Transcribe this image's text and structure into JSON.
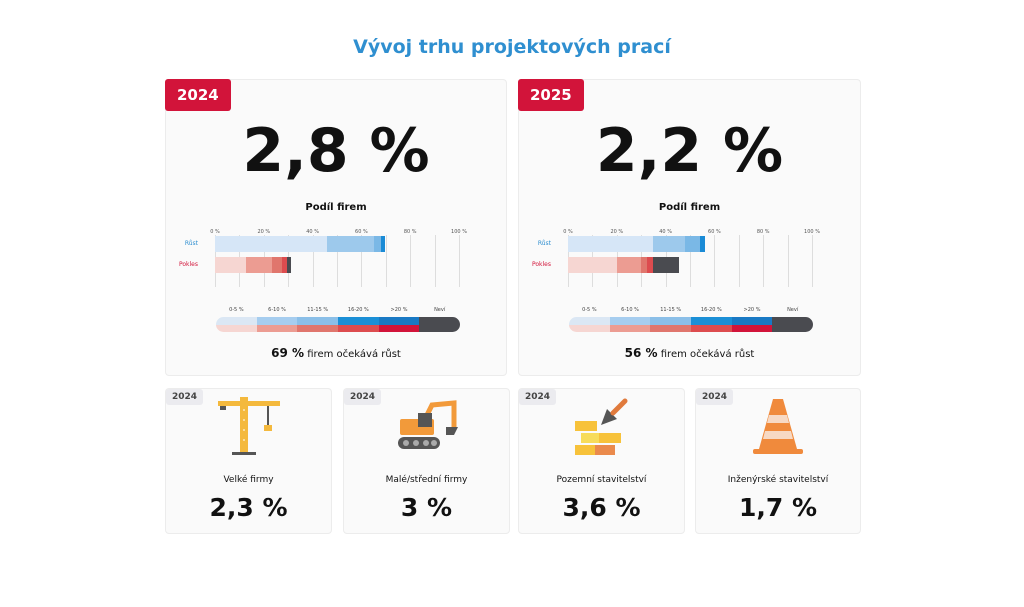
{
  "title": "Vývoj trhu projektových prací",
  "colors": {
    "title": "#2f8fd0",
    "badge": "#d2143a",
    "rust": [
      "#d6e6f7",
      "#9dc9ec",
      "#7ab8e6",
      "#1a8bd6"
    ],
    "pokles": [
      "#f6d6d2",
      "#ec9c92",
      "#e0766d",
      "#dd4c4f",
      "#4a4b50"
    ],
    "legend_top": [
      "#dbe7f4",
      "#a6cdef",
      "#8bbfe8",
      "#1b8fd6",
      "#1979c4",
      "#4a4b50"
    ],
    "legend_bottom": [
      "#f6d6d2",
      "#ec9c92",
      "#e0766d",
      "#dd4c4f",
      "#d2143a",
      "#4a4b50"
    ]
  },
  "panels": [
    {
      "year": "2024",
      "value": "2,8 %",
      "subtitle": "Podíl firem",
      "summary_value": "69 %",
      "summary_text": "firem očekává růst"
    },
    {
      "year": "2025",
      "value": "2,2 %",
      "subtitle": "Podíl firem",
      "summary_value": "56 %",
      "summary_text": "firem očekává růst"
    }
  ],
  "legend": [
    "0-5 %",
    "6-10 %",
    "11-15 %",
    "16-20 %",
    ">20 %",
    "Neví"
  ],
  "chart_data": [
    {
      "type": "bar",
      "title": "Podíl firem 2024",
      "stacked": true,
      "orientation": "horizontal",
      "xlim": [
        0,
        100
      ],
      "xticks": [
        "0 %",
        "20 %",
        "40 %",
        "60 %",
        "80 %",
        "100 %"
      ],
      "categories": [
        "Růst",
        "Pokles"
      ],
      "series": [
        {
          "name": "Růst",
          "segments": [
            46,
            19,
            3,
            1.5
          ]
        },
        {
          "name": "Pokles",
          "segments": [
            12.5,
            11,
            4,
            2,
            1.5
          ]
        }
      ]
    },
    {
      "type": "bar",
      "title": "Podíl firem 2025",
      "stacked": true,
      "orientation": "horizontal",
      "xlim": [
        0,
        100
      ],
      "xticks": [
        "0 %",
        "20 %",
        "40 %",
        "60 %",
        "80 %",
        "100 %"
      ],
      "categories": [
        "Růst",
        "Pokles"
      ],
      "series": [
        {
          "name": "Růst",
          "segments": [
            35,
            13,
            6,
            2
          ]
        },
        {
          "name": "Pokles",
          "segments": [
            20,
            10,
            2.5,
            2.5,
            10.5
          ]
        }
      ]
    }
  ],
  "cards": [
    {
      "year": "2024",
      "label": "Velké firmy",
      "value": "2,3 %",
      "icon": "crane-icon"
    },
    {
      "year": "2024",
      "label": "Malé/střední firmy",
      "value": "3 %",
      "icon": "excavator-icon"
    },
    {
      "year": "2024",
      "label": "Pozemní stavitelství",
      "value": "3,6 %",
      "icon": "bricks-trowel-icon"
    },
    {
      "year": "2024",
      "label": "Inženýrské stavitelství",
      "value": "1,7 %",
      "icon": "traffic-cone-icon"
    }
  ]
}
